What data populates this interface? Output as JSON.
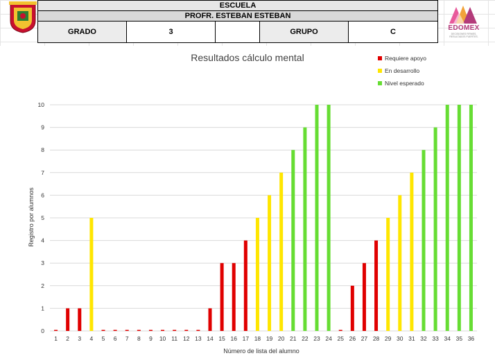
{
  "header": {
    "school_label": "ESCUELA",
    "teacher_label": "PROFR. ESTEBAN ESTEBAN",
    "grade_label": "GRADO",
    "grade_value": "3",
    "group_label": "GRUPO",
    "group_value": "C"
  },
  "brand": {
    "name": "EDOMEX",
    "tagline": "DECISIONES FIRMES, RESULTADOS FUERTES."
  },
  "colors": {
    "requiere": "#e00000",
    "desarrollo": "#ffe600",
    "esperado": "#66dd33",
    "gridline": "#d9d9d9"
  },
  "chart_data": {
    "type": "bar",
    "title": "Resultados cálculo mental",
    "xlabel": "Número de lista del alumno",
    "ylabel": "Registro por alumnos",
    "ylim": [
      0,
      10
    ],
    "yticks": [
      "0",
      "1",
      "2",
      "3",
      "4",
      "5",
      "6",
      "7",
      "8",
      "9",
      "10"
    ],
    "grid": true,
    "legend_position": "top-right",
    "legend": [
      {
        "label": "Requiere apoyo",
        "color": "#e00000"
      },
      {
        "label": "En desarrollo",
        "color": "#ffe600"
      },
      {
        "label": "Nivel esperado",
        "color": "#66dd33"
      }
    ],
    "categories": [
      "1",
      "2",
      "3",
      "4",
      "5",
      "6",
      "7",
      "8",
      "9",
      "10",
      "11",
      "12",
      "13",
      "14",
      "15",
      "16",
      "17",
      "18",
      "19",
      "20",
      "21",
      "22",
      "23",
      "24",
      "25",
      "26",
      "27",
      "28",
      "29",
      "30",
      "31",
      "32",
      "33",
      "34",
      "35",
      "36"
    ],
    "values": [
      0,
      1,
      1,
      5,
      0,
      0,
      0,
      0,
      0,
      0,
      0,
      0,
      0,
      1,
      3,
      3,
      4,
      5,
      6,
      7,
      8,
      9,
      10,
      10,
      0,
      2,
      3,
      4,
      5,
      6,
      7,
      8,
      9,
      10,
      10,
      10
    ],
    "levels": [
      "r",
      "r",
      "r",
      "y",
      "r",
      "r",
      "r",
      "r",
      "r",
      "r",
      "r",
      "r",
      "r",
      "r",
      "r",
      "r",
      "r",
      "y",
      "y",
      "y",
      "g",
      "g",
      "g",
      "g",
      "r",
      "r",
      "r",
      "r",
      "y",
      "y",
      "y",
      "g",
      "g",
      "g",
      "g",
      "g"
    ]
  }
}
